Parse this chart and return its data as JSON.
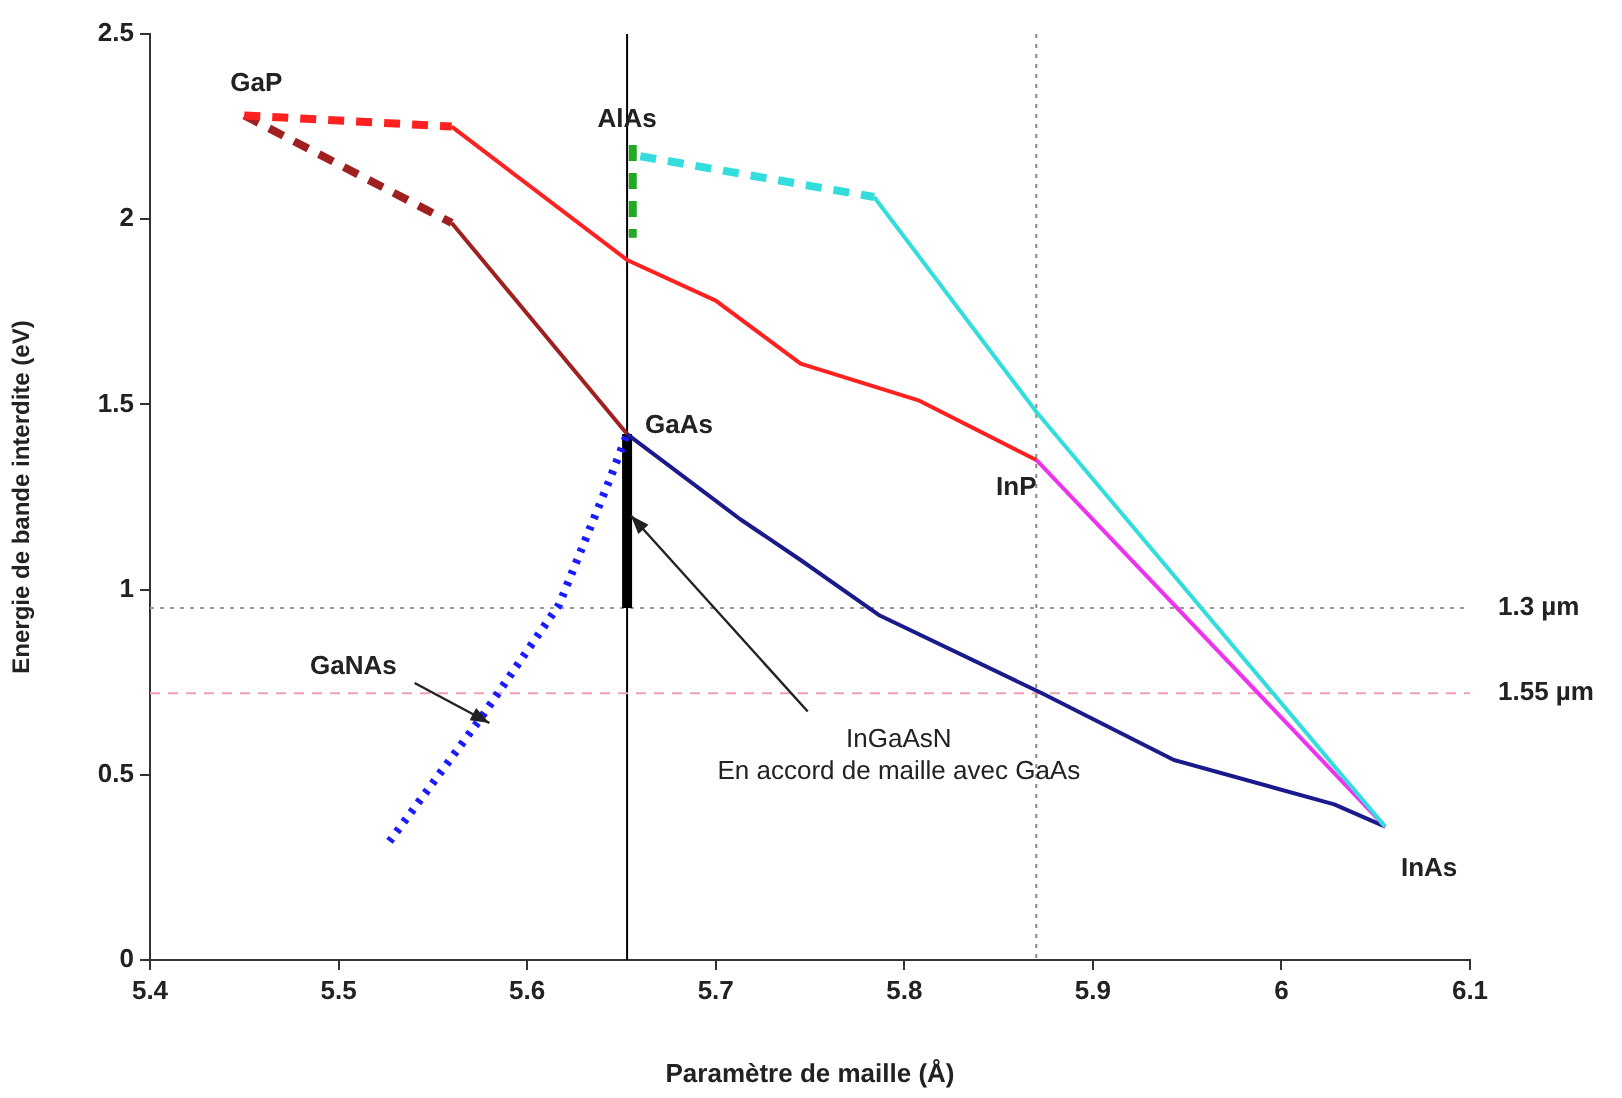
{
  "chart_data": {
    "type": "line",
    "xlabel": "Paramètre de maille (Å)",
    "ylabel": "Energie de bande interdite (eV)",
    "xlim": [
      5.4,
      6.1
    ],
    "xticks": [
      5.4,
      5.5,
      5.6,
      5.7,
      5.8,
      5.9,
      {
        "value": 6.0,
        "label": "6"
      },
      6.1
    ],
    "ylim": [
      0,
      2.5
    ],
    "yticks": [
      0,
      0.5,
      1,
      1.5,
      2,
      2.5
    ],
    "grid": false,
    "legend": false,
    "marker": "none",
    "series": [
      {
        "color": "#ff2020",
        "line_style": "dashed",
        "x": [
          5.45,
          5.56
        ],
        "values": [
          2.28,
          2.25
        ]
      },
      {
        "color": "#ff2020",
        "line_style": "solid",
        "x": [
          5.56,
          5.653,
          5.7,
          5.745,
          5.808,
          5.87
        ],
        "values": [
          2.25,
          1.89,
          1.78,
          1.61,
          1.51,
          1.35
        ]
      },
      {
        "color": "#a02020",
        "line_style": "dashed",
        "x": [
          5.45,
          5.56
        ],
        "values": [
          2.28,
          1.99
        ]
      },
      {
        "color": "#a02020",
        "line_style": "solid",
        "x": [
          5.56,
          5.653
        ],
        "values": [
          1.99,
          1.42
        ]
      },
      {
        "color": "#33dddd",
        "line_style": "dashed",
        "x": [
          5.66,
          5.784
        ],
        "values": [
          2.17,
          2.06
        ]
      },
      {
        "color": "#33dddd",
        "line_style": "solid",
        "x": [
          5.784,
          5.87,
          6.055
        ],
        "values": [
          2.06,
          1.48,
          0.36
        ]
      },
      {
        "color": "#ee33ee",
        "line_style": "solid",
        "x": [
          5.87,
          6.055
        ],
        "values": [
          1.35,
          0.36
        ]
      },
      {
        "color": "#1a1a8c",
        "line_style": "solid",
        "x": [
          5.653,
          5.713,
          5.745,
          5.787,
          5.873,
          5.943,
          6.028,
          6.055
        ],
        "values": [
          1.42,
          1.19,
          1.08,
          0.93,
          0.72,
          0.54,
          0.42,
          0.36
        ]
      },
      {
        "color": "#1a1aff",
        "line_style": "dotted",
        "x": [
          5.527,
          5.575,
          5.617,
          5.644,
          5.653
        ],
        "values": [
          0.32,
          0.65,
          0.96,
          1.3,
          1.42
        ]
      },
      {
        "color": "#000000",
        "line_style": "solid",
        "x": [
          5.653,
          5.653
        ],
        "values": [
          0.95,
          1.42
        ]
      },
      {
        "color": "#22aa22",
        "line_style": "dashed",
        "x": [
          5.656,
          5.656
        ],
        "values": [
          2.2,
          1.95
        ]
      }
    ],
    "ref_lines": [
      {
        "axis": "x",
        "value": 5.653,
        "color": "#000000",
        "line_style": "solid"
      },
      {
        "axis": "x",
        "value": 5.87,
        "color": "#888888",
        "line_style": "dotted"
      },
      {
        "axis": "y",
        "value": 0.95,
        "color": "#999999",
        "line_style": "dotted",
        "label": "1.3 µm"
      },
      {
        "axis": "y",
        "value": 0.72,
        "color": "#f0a0b0",
        "line_style": "dashed",
        "label": "1.55 µm"
      }
    ],
    "annotations": [
      {
        "text": "GaP",
        "x": 5.45,
        "y": 2.28
      },
      {
        "text": "AlAs",
        "x": 5.653,
        "y": 2.17
      },
      {
        "text": "GaAs",
        "x": 5.653,
        "y": 1.42
      },
      {
        "text": "InP",
        "x": 5.87,
        "y": 1.35
      },
      {
        "text": "InAs",
        "x": 6.055,
        "y": 0.36
      },
      {
        "text": "GaNAs",
        "x": 5.58,
        "y": 0.64
      },
      {
        "text": "InGaAsN\nEn accord de maille avec GaAs",
        "x": 5.655,
        "y": 1.2
      }
    ]
  }
}
